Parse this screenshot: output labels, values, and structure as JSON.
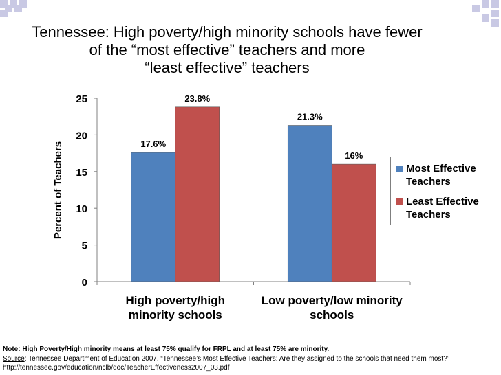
{
  "title": {
    "line1": "Tennessee:  High poverty/high minority schools have fewer",
    "line2": "of the “most effective” teachers and more",
    "line3": "“least effective” teachers"
  },
  "chart_data": {
    "type": "bar",
    "categories": [
      "High poverty/high minority schools",
      "Low poverty/low minority schools"
    ],
    "category_label_lines": [
      [
        "High poverty/high",
        "minority schools"
      ],
      [
        "Low poverty/low minority",
        "schools"
      ]
    ],
    "series": [
      {
        "name": "Most Effective Teachers",
        "legend_label": "Most Effective\nTeachers",
        "values": [
          17.6,
          21.3
        ],
        "data_labels": [
          "17.6%",
          "21.3%"
        ],
        "color": "#4f81bd"
      },
      {
        "name": "Least Effective Teachers",
        "legend_label": "Least Effective\nTeachers",
        "values": [
          23.8,
          16
        ],
        "data_labels": [
          "23.8%",
          "16%"
        ],
        "color": "#c0504d"
      }
    ],
    "ylabel": "Percent of Teachers",
    "xlabel": "",
    "ylim": [
      0,
      25
    ],
    "yticks": [
      0,
      5,
      10,
      15,
      20,
      25
    ],
    "grid": false,
    "legend_position": "right"
  },
  "footnote": {
    "note": "Note:  High Poverty/High minority means at least 75% qualify for FRPL and at least 75% are minority.",
    "source_label": "Source",
    "source_text": ":  Tennessee Department of Education 2007. “Tennessee’s Most Effective Teachers: Are they assigned to the schools that need them most?” http://tennessee.gov/education/nclb/doc/TeacherEffectiveness2007_03.pdf"
  },
  "decoration_colors": {
    "corner_squares": "#c9c9e4"
  }
}
